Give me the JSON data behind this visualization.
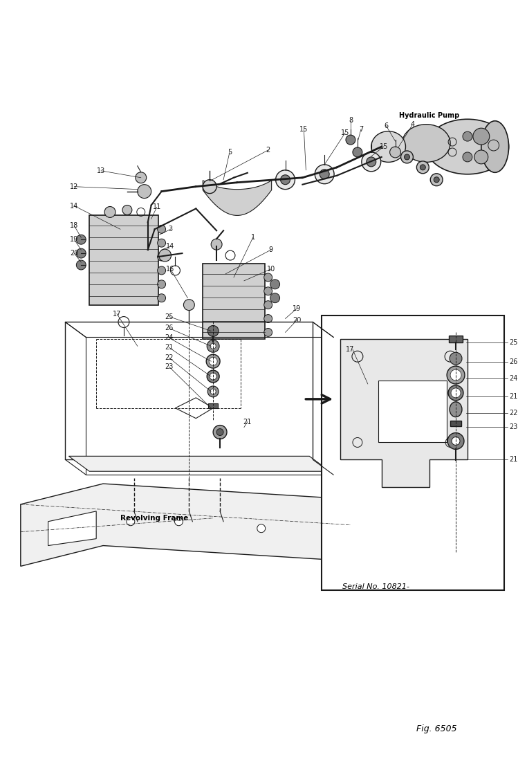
{
  "fig_label": "Fig. 6505",
  "serial_label": "Serial No. 10821-",
  "hydraulic_pump_label": "Hydraulic Pump",
  "revolving_frame_label": "Revolving Frame",
  "bg_color": "#ffffff",
  "line_color": "#1a1a1a",
  "text_color": "#1a1a1a"
}
